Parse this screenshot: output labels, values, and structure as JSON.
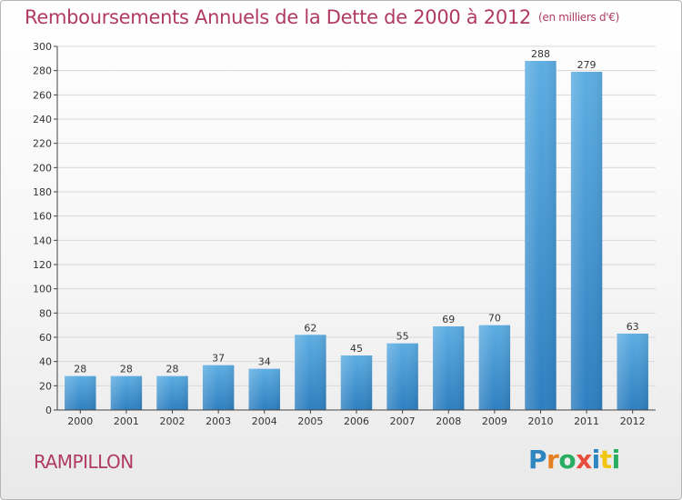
{
  "title": "Remboursements Annuels de la Dette de 2000 à 2012",
  "unit": "(en milliers d'€)",
  "commune": "RAMPILLON",
  "logo": {
    "text": "Proxiti",
    "letters": [
      {
        "ch": "P",
        "color": "#2e86c1"
      },
      {
        "ch": "r",
        "color": "#e67e22"
      },
      {
        "ch": "o",
        "color": "#27ae60"
      },
      {
        "ch": "x",
        "color": "#e74c3c"
      },
      {
        "ch": "i",
        "color": "#2e86c1"
      },
      {
        "ch": "t",
        "color": "#f1c40f"
      },
      {
        "ch": "i",
        "color": "#27ae60"
      }
    ]
  },
  "colors": {
    "title": "#b03a63",
    "bar_light": "#5dade2",
    "bar_dark": "#2e7fc0",
    "grid": "#d8d8d8",
    "axis": "#444444"
  },
  "chart_data": {
    "type": "bar",
    "categories": [
      "2000",
      "2001",
      "2002",
      "2003",
      "2004",
      "2005",
      "2006",
      "2007",
      "2008",
      "2009",
      "2010",
      "2011",
      "2012"
    ],
    "values": [
      28,
      28,
      28,
      37,
      34,
      62,
      45,
      55,
      69,
      70,
      288,
      279,
      63
    ],
    "ylim": [
      0,
      300
    ],
    "yticks": [
      0,
      20,
      40,
      60,
      80,
      100,
      120,
      140,
      160,
      180,
      200,
      220,
      240,
      260,
      280,
      300
    ],
    "grid": true
  }
}
